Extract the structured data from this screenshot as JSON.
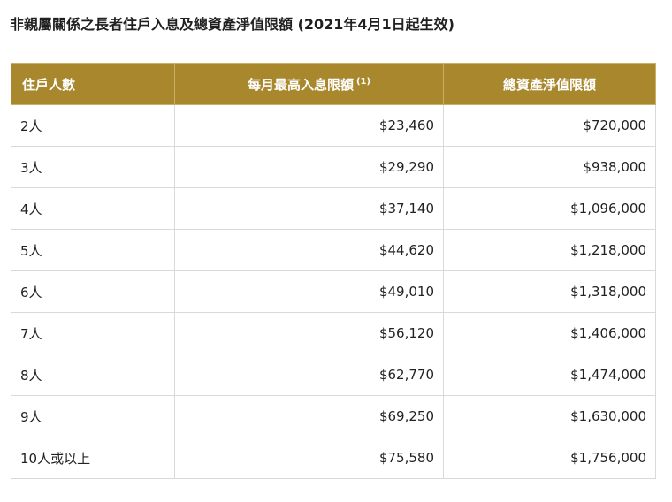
{
  "page": {
    "title": "非親屬關係之長者住戶入息及總資產淨值限額 (2021年4月1日起生效)"
  },
  "table": {
    "headers": {
      "household": "住戶人數",
      "income": "每月最高入息限額",
      "income_note": "(1)",
      "assets": "總資產淨值限額"
    },
    "rows": [
      {
        "household": "2人",
        "income": "$23,460",
        "assets": "$720,000"
      },
      {
        "household": "3人",
        "income": "$29,290",
        "assets": "$938,000"
      },
      {
        "household": "4人",
        "income": "$37,140",
        "assets": "$1,096,000"
      },
      {
        "household": "5人",
        "income": "$44,620",
        "assets": "$1,218,000"
      },
      {
        "household": "6人",
        "income": "$49,010",
        "assets": "$1,318,000"
      },
      {
        "household": "7人",
        "income": "$56,120",
        "assets": "$1,406,000"
      },
      {
        "household": "8人",
        "income": "$62,770",
        "assets": "$1,474,000"
      },
      {
        "household": "9人",
        "income": "$69,250",
        "assets": "$1,630,000"
      },
      {
        "household": "10人或以上",
        "income": "$75,580",
        "assets": "$1,756,000"
      }
    ]
  },
  "colors": {
    "header_bg": "#a8872d",
    "header_text": "#ffffff",
    "border": "#d9d9d9"
  }
}
